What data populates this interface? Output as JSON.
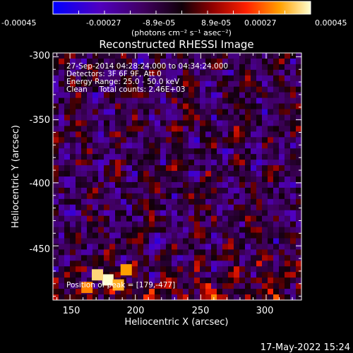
{
  "colorbar": {
    "tick_labels": [
      "-0.00045",
      "-0.00027",
      "-8.9e-05",
      "8.9e-05",
      "0.00027",
      "0.00045"
    ],
    "unit_label": "(photons cm⁻² s⁻¹ asec⁻²)",
    "range": [
      -0.00045,
      0.00045
    ]
  },
  "plot": {
    "title": "Reconstructed RHESSI Image",
    "info_lines": [
      "27-Sep-2014 04:28:24.000 to 04:34:24.000",
      "Detectors: 3F 6F 9F, Att 0",
      "Energy Range: 25.0 - 50.0 keV",
      "Clean     Total counts: 2.46E+03"
    ],
    "position_readout": "Position of peak = [179,-477]",
    "xlabel": "Heliocentric X (arcsec)",
    "ylabel": "Heliocentric Y (arcsec)",
    "x_ticks": [
      "150",
      "200",
      "250",
      "300"
    ],
    "y_ticks": [
      "-300",
      "-350",
      "-400",
      "-450"
    ],
    "x_range": [
      137,
      327
    ],
    "y_range": [
      -493,
      -297
    ]
  },
  "footer": {
    "timestamp": "17-May-2022 15:24"
  },
  "chart_data": {
    "type": "heatmap",
    "title": "Reconstructed RHESSI Image",
    "xlabel": "Heliocentric X (arcsec)",
    "ylabel": "Heliocentric Y (arcsec)",
    "xlim": [
      137,
      327
    ],
    "ylim": [
      -493,
      -297
    ],
    "x_ticks": [
      150,
      200,
      250,
      300
    ],
    "y_ticks": [
      -300,
      -350,
      -400,
      -450
    ],
    "colorbar_range": [
      -0.00045,
      0.00045
    ],
    "peak": [
      179,
      -477
    ],
    "colormap": [
      "#0000ff",
      "#7000b0",
      "#300040",
      "#000000",
      "#8b0000",
      "#ff2000",
      "#ff9000",
      "#ffffa0"
    ]
  }
}
